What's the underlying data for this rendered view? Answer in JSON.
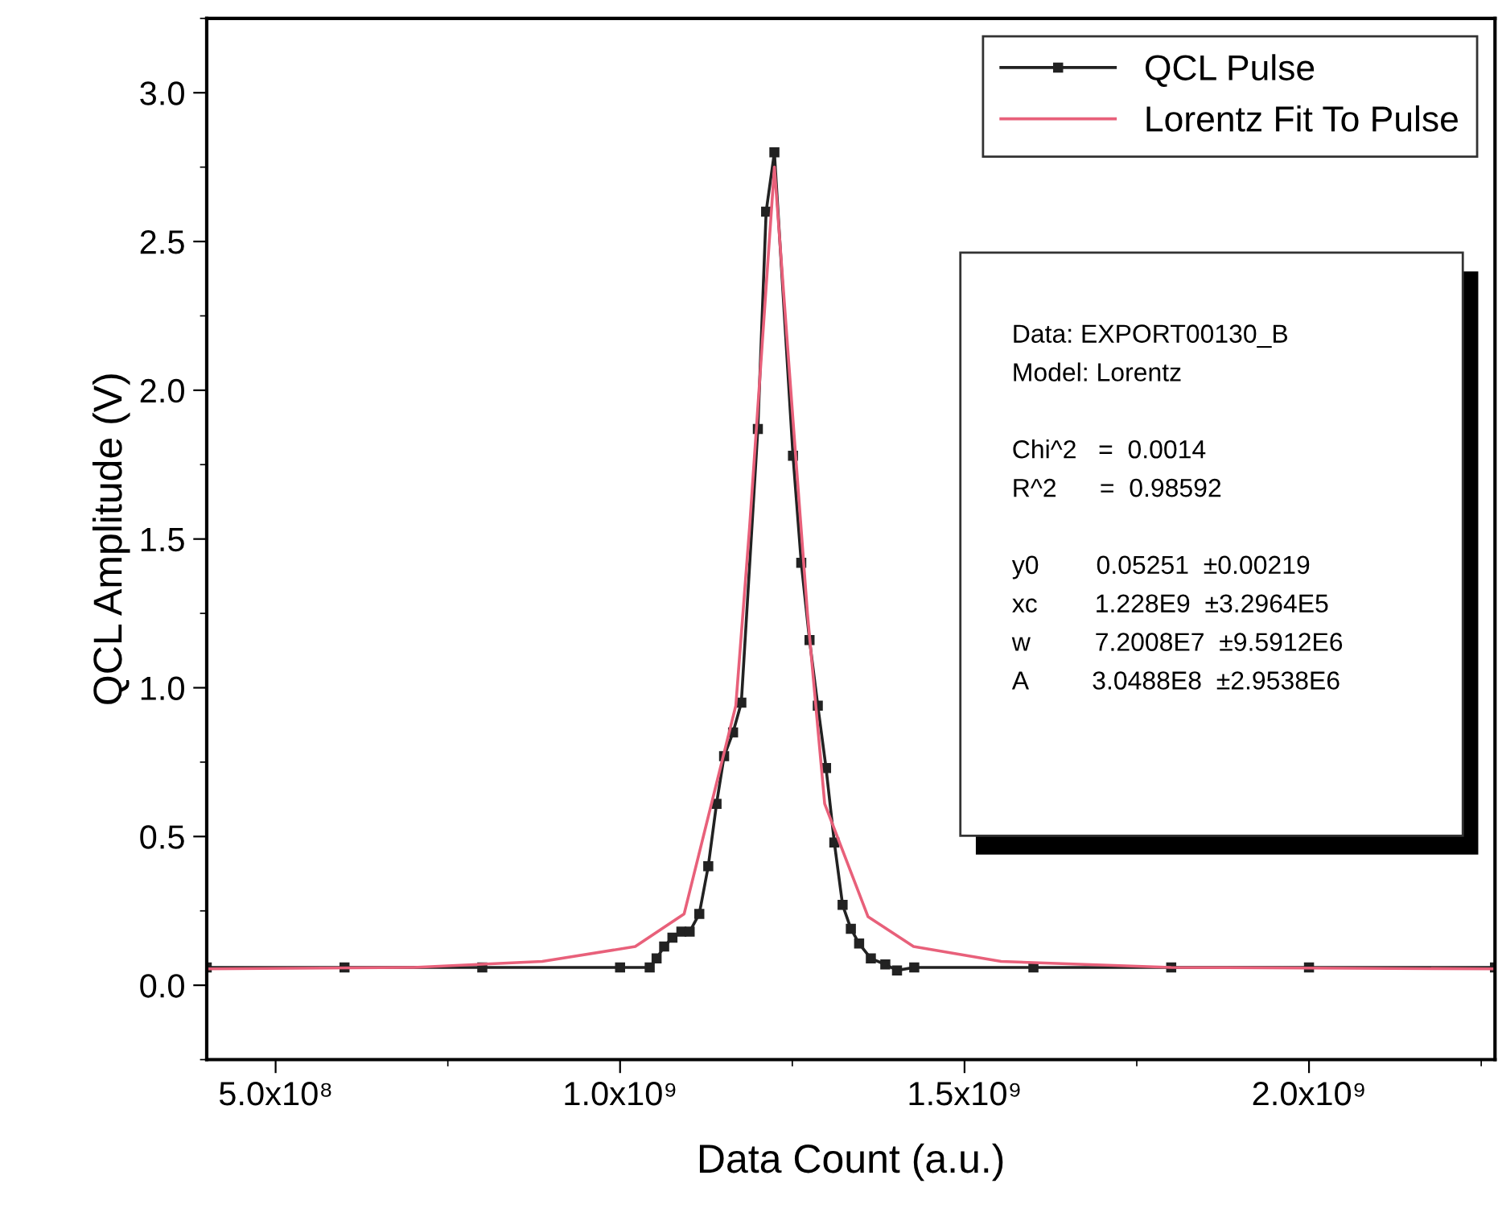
{
  "chart_data": {
    "type": "line",
    "xlabel": "Data Count (a.u.)",
    "ylabel": "QCL Amplitude (V)",
    "xlim": [
      400000000,
      2270000000
    ],
    "ylim": [
      -0.25,
      3.25
    ],
    "xticks": [
      {
        "value": 500000000,
        "label": "5.0x10⁸"
      },
      {
        "value": 1000000000,
        "label": "1.0x10⁹"
      },
      {
        "value": 1500000000,
        "label": "1.5x10⁹"
      },
      {
        "value": 2000000000,
        "label": "2.0x10⁹"
      }
    ],
    "yticks": [
      {
        "value": 0,
        "label": "0.0"
      },
      {
        "value": 0.5,
        "label": "0.5"
      },
      {
        "value": 1,
        "label": "1.0"
      },
      {
        "value": 1.5,
        "label": "1.5"
      },
      {
        "value": 2,
        "label": "2.0"
      },
      {
        "value": 2.5,
        "label": "2.5"
      },
      {
        "value": 3,
        "label": "3.0"
      }
    ],
    "grid": false,
    "legend": "top right",
    "series": [
      {
        "name": "QCL Pulse",
        "color": "#222222",
        "marker": "square",
        "x": [
          400000000,
          600000000,
          800000000,
          1000000000,
          1043000000,
          1053000000,
          1064000000,
          1076000000,
          1089000000,
          1101000000,
          1115000000,
          1128000000,
          1140000000,
          1151000000,
          1164000000,
          1176000000,
          1200000000,
          1212000000,
          1224000000,
          1251000000,
          1263000000,
          1275000000,
          1287000000,
          1299000000,
          1311000000,
          1323000000,
          1335000000,
          1347000000,
          1364000000,
          1385000000,
          1402000000,
          1427000000,
          1600000000,
          1800000000,
          2000000000,
          2270000000
        ],
        "values": [
          0.06,
          0.06,
          0.06,
          0.06,
          0.06,
          0.09,
          0.13,
          0.16,
          0.18,
          0.18,
          0.24,
          0.4,
          0.61,
          0.77,
          0.85,
          0.95,
          1.87,
          2.6,
          2.8,
          1.78,
          1.42,
          1.16,
          0.94,
          0.73,
          0.48,
          0.27,
          0.19,
          0.14,
          0.09,
          0.07,
          0.05,
          0.06,
          0.06,
          0.06,
          0.06,
          0.06
        ]
      },
      {
        "name": "Lorentz Fit To Pulse",
        "color": "#e8607a",
        "marker": "none",
        "x": [
          400000000,
          700000000,
          887000000,
          1022000000,
          1093000000,
          1168000000,
          1188000000,
          1224000000,
          1251000000,
          1272000000,
          1297000000,
          1360000000,
          1426000000,
          1553000000,
          1800000000,
          2270000000
        ],
        "values": [
          0.055,
          0.06,
          0.08,
          0.13,
          0.24,
          0.94,
          1.54,
          2.75,
          1.9,
          1.25,
          0.61,
          0.23,
          0.13,
          0.08,
          0.06,
          0.055
        ]
      }
    ],
    "annotations": [
      "Data: EXPORT00130_B",
      "Model: Lorentz",
      "Chi^2   =  0.0014",
      "R^2      =  0.98592",
      "y0        0.05251  ±0.00219",
      "xc        1.228E9  ±3.2964E5",
      "w         7.2008E7  ±9.5912E6",
      "A         3.0488E8  ±2.9538E6"
    ]
  }
}
